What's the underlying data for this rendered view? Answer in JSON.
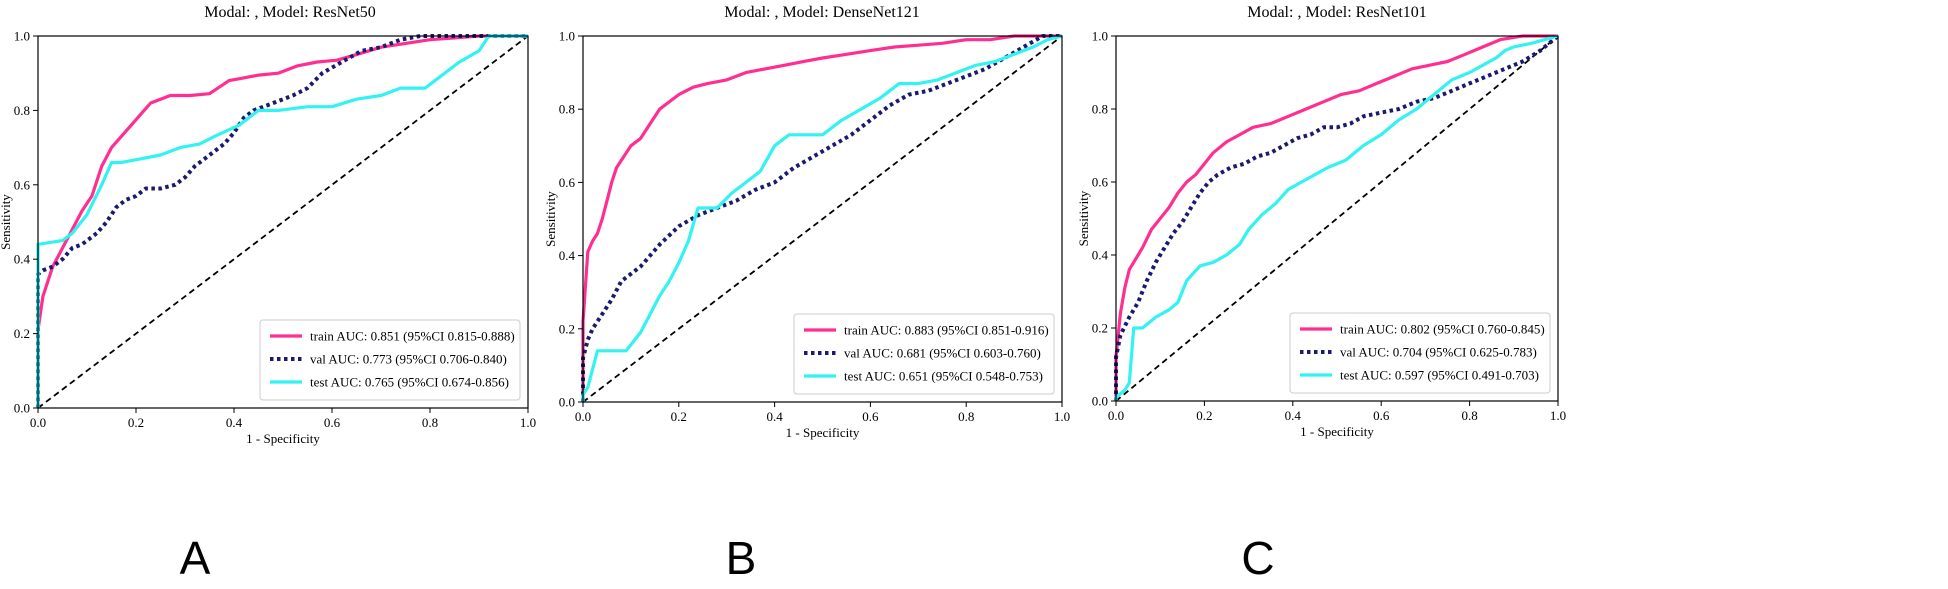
{
  "colors": {
    "train": "#ff2f92",
    "val": "#1a1a6e",
    "test": "#33f2f2",
    "diagonal": "#000000",
    "axes": "#000000"
  },
  "chart_data": [
    {
      "type": "line",
      "panel_label": "A",
      "title": "Modal: , Model: ResNet50",
      "xlabel": "1 - Specificity",
      "ylabel": "Sensitivity",
      "xlim": [
        0,
        1
      ],
      "ylim": [
        0,
        1
      ],
      "xticks": [
        "0.0",
        "0.2",
        "0.4",
        "0.6",
        "0.8",
        "1.0"
      ],
      "yticks": [
        "0.0",
        "0.2",
        "0.4",
        "0.6",
        "0.8",
        "1.0"
      ],
      "legend_position": "lower-right",
      "series": [
        {
          "key": "train",
          "name": "train AUC: 0.851 (95%CI 0.815-0.888)",
          "x": [
            0,
            0,
            0.01,
            0.02,
            0.03,
            0.05,
            0.07,
            0.09,
            0.11,
            0.13,
            0.15,
            0.17,
            0.19,
            0.21,
            0.23,
            0.25,
            0.27,
            0.31,
            0.35,
            0.39,
            0.41,
            0.45,
            0.49,
            0.53,
            0.57,
            0.61,
            0.65,
            0.7,
            0.75,
            0.8,
            0.85,
            0.9,
            0.95,
            1
          ],
          "y": [
            0,
            0.21,
            0.3,
            0.34,
            0.38,
            0.43,
            0.48,
            0.53,
            0.57,
            0.65,
            0.7,
            0.73,
            0.76,
            0.79,
            0.82,
            0.83,
            0.84,
            0.84,
            0.845,
            0.88,
            0.885,
            0.895,
            0.9,
            0.92,
            0.93,
            0.935,
            0.95,
            0.97,
            0.98,
            0.99,
            0.995,
            1,
            1,
            1
          ]
        },
        {
          "key": "val",
          "name": "val AUC: 0.773 (95%CI 0.706-0.840)",
          "x": [
            0,
            0,
            0.01,
            0.03,
            0.05,
            0.07,
            0.09,
            0.1,
            0.12,
            0.14,
            0.16,
            0.18,
            0.2,
            0.22,
            0.25,
            0.28,
            0.3,
            0.32,
            0.34,
            0.36,
            0.38,
            0.4,
            0.42,
            0.44,
            0.48,
            0.52,
            0.55,
            0.58,
            0.62,
            0.66,
            0.7,
            0.74,
            0.78,
            0.85,
            0.92,
            1
          ],
          "y": [
            0,
            0.36,
            0.37,
            0.38,
            0.4,
            0.43,
            0.44,
            0.45,
            0.47,
            0.5,
            0.54,
            0.56,
            0.57,
            0.59,
            0.59,
            0.6,
            0.62,
            0.65,
            0.67,
            0.69,
            0.71,
            0.74,
            0.78,
            0.8,
            0.82,
            0.84,
            0.86,
            0.9,
            0.93,
            0.96,
            0.97,
            0.99,
            1,
            1,
            1,
            1
          ]
        },
        {
          "key": "test",
          "name": "test AUC: 0.765 (95%CI 0.674-0.856)",
          "x": [
            0,
            0,
            0.05,
            0.07,
            0.1,
            0.13,
            0.15,
            0.17,
            0.21,
            0.25,
            0.29,
            0.33,
            0.36,
            0.41,
            0.45,
            0.49,
            0.55,
            0.6,
            0.65,
            0.7,
            0.74,
            0.79,
            0.83,
            0.86,
            0.9,
            0.92,
            0.95,
            1
          ],
          "y": [
            0,
            0.44,
            0.45,
            0.47,
            0.52,
            0.6,
            0.66,
            0.66,
            0.67,
            0.68,
            0.7,
            0.71,
            0.73,
            0.76,
            0.8,
            0.8,
            0.81,
            0.81,
            0.83,
            0.84,
            0.86,
            0.86,
            0.9,
            0.93,
            0.96,
            1,
            1,
            1
          ]
        }
      ]
    },
    {
      "type": "line",
      "panel_label": "B",
      "title": "Modal: , Model: DenseNet121",
      "xlabel": "1 - Specificity",
      "ylabel": "Sensitivity",
      "xlim": [
        0,
        1
      ],
      "ylim": [
        0,
        1
      ],
      "xticks": [
        "0.0",
        "0.2",
        "0.4",
        "0.6",
        "0.8",
        "1.0"
      ],
      "yticks": [
        "0.0",
        "0.2",
        "0.4",
        "0.6",
        "0.8",
        "1.0"
      ],
      "legend_position": "lower-right",
      "series": [
        {
          "key": "train",
          "name": "train AUC: 0.883 (95%CI 0.851-0.916)",
          "x": [
            0,
            0,
            0.01,
            0.02,
            0.03,
            0.04,
            0.05,
            0.06,
            0.07,
            0.08,
            0.1,
            0.12,
            0.14,
            0.16,
            0.18,
            0.2,
            0.23,
            0.26,
            0.3,
            0.34,
            0.38,
            0.42,
            0.46,
            0.5,
            0.55,
            0.6,
            0.65,
            0.7,
            0.75,
            0.8,
            0.85,
            0.9,
            0.95,
            1
          ],
          "y": [
            0,
            0.22,
            0.41,
            0.44,
            0.46,
            0.5,
            0.55,
            0.6,
            0.64,
            0.66,
            0.7,
            0.72,
            0.76,
            0.8,
            0.82,
            0.84,
            0.86,
            0.87,
            0.88,
            0.9,
            0.91,
            0.92,
            0.93,
            0.94,
            0.95,
            0.96,
            0.97,
            0.975,
            0.98,
            0.99,
            0.99,
            1,
            1,
            1
          ]
        },
        {
          "key": "val",
          "name": "val AUC: 0.681 (95%CI 0.603-0.760)",
          "x": [
            0,
            0,
            0.01,
            0.02,
            0.04,
            0.06,
            0.08,
            0.1,
            0.12,
            0.14,
            0.16,
            0.2,
            0.24,
            0.28,
            0.32,
            0.36,
            0.4,
            0.44,
            0.48,
            0.52,
            0.56,
            0.6,
            0.64,
            0.68,
            0.72,
            0.76,
            0.8,
            0.84,
            0.88,
            0.92,
            0.96,
            1
          ],
          "y": [
            0,
            0.12,
            0.17,
            0.2,
            0.24,
            0.28,
            0.33,
            0.35,
            0.37,
            0.4,
            0.43,
            0.48,
            0.51,
            0.53,
            0.55,
            0.58,
            0.6,
            0.64,
            0.67,
            0.7,
            0.73,
            0.77,
            0.81,
            0.84,
            0.85,
            0.87,
            0.89,
            0.91,
            0.94,
            0.97,
            1,
            1
          ]
        },
        {
          "key": "test",
          "name": "test AUC: 0.651 (95%CI 0.548-0.753)",
          "x": [
            0,
            0,
            0.01,
            0.02,
            0.03,
            0.06,
            0.09,
            0.12,
            0.14,
            0.16,
            0.18,
            0.2,
            0.22,
            0.24,
            0.26,
            0.28,
            0.31,
            0.34,
            0.37,
            0.4,
            0.43,
            0.46,
            0.5,
            0.54,
            0.58,
            0.62,
            0.66,
            0.7,
            0.74,
            0.78,
            0.82,
            0.86,
            0.9,
            0.94,
            0.97,
            1
          ],
          "y": [
            0,
            0.02,
            0.04,
            0.09,
            0.14,
            0.14,
            0.14,
            0.19,
            0.24,
            0.29,
            0.33,
            0.38,
            0.44,
            0.53,
            0.53,
            0.53,
            0.57,
            0.6,
            0.63,
            0.7,
            0.73,
            0.73,
            0.73,
            0.77,
            0.8,
            0.83,
            0.87,
            0.87,
            0.88,
            0.9,
            0.92,
            0.93,
            0.95,
            0.97,
            0.99,
            1
          ]
        }
      ]
    },
    {
      "type": "line",
      "panel_label": "C",
      "title": "Modal: , Model: ResNet101",
      "xlabel": "1 - Specificity",
      "ylabel": "Sensitivity",
      "xlim": [
        0,
        1
      ],
      "ylim": [
        0,
        1
      ],
      "xticks": [
        "0.0",
        "0.2",
        "0.4",
        "0.6",
        "0.8",
        "1.0"
      ],
      "yticks": [
        "0.0",
        "0.2",
        "0.4",
        "0.6",
        "0.8",
        "1.0"
      ],
      "legend_position": "lower-right",
      "series": [
        {
          "key": "train",
          "name": "train AUC: 0.802 (95%CI 0.760-0.845)",
          "x": [
            0,
            0,
            0.01,
            0.02,
            0.03,
            0.04,
            0.06,
            0.08,
            0.1,
            0.12,
            0.14,
            0.16,
            0.18,
            0.2,
            0.22,
            0.25,
            0.28,
            0.31,
            0.35,
            0.39,
            0.43,
            0.47,
            0.51,
            0.55,
            0.59,
            0.63,
            0.67,
            0.71,
            0.75,
            0.79,
            0.83,
            0.87,
            0.92,
            1
          ],
          "y": [
            0,
            0.12,
            0.24,
            0.31,
            0.36,
            0.38,
            0.42,
            0.47,
            0.5,
            0.53,
            0.57,
            0.6,
            0.62,
            0.65,
            0.68,
            0.71,
            0.73,
            0.75,
            0.76,
            0.78,
            0.8,
            0.82,
            0.84,
            0.85,
            0.87,
            0.89,
            0.91,
            0.92,
            0.93,
            0.95,
            0.97,
            0.99,
            1,
            1
          ]
        },
        {
          "key": "val",
          "name": "val AUC: 0.704 (95%CI 0.625-0.783)",
          "x": [
            0,
            0,
            0.01,
            0.03,
            0.05,
            0.07,
            0.09,
            0.11,
            0.13,
            0.15,
            0.17,
            0.19,
            0.21,
            0.23,
            0.26,
            0.29,
            0.32,
            0.35,
            0.38,
            0.41,
            0.44,
            0.47,
            0.5,
            0.53,
            0.56,
            0.6,
            0.64,
            0.68,
            0.72,
            0.76,
            0.8,
            0.84,
            0.88,
            0.92,
            0.96,
            1
          ],
          "y": [
            0,
            0.12,
            0.18,
            0.23,
            0.27,
            0.33,
            0.38,
            0.42,
            0.46,
            0.49,
            0.53,
            0.57,
            0.6,
            0.62,
            0.64,
            0.65,
            0.67,
            0.68,
            0.7,
            0.72,
            0.73,
            0.75,
            0.75,
            0.76,
            0.78,
            0.79,
            0.8,
            0.82,
            0.83,
            0.85,
            0.87,
            0.89,
            0.91,
            0.93,
            0.96,
            1
          ]
        },
        {
          "key": "test",
          "name": "test AUC: 0.597 (95%CI 0.491-0.703)",
          "x": [
            0,
            0,
            0.01,
            0.02,
            0.03,
            0.04,
            0.06,
            0.09,
            0.12,
            0.14,
            0.16,
            0.19,
            0.22,
            0.25,
            0.28,
            0.3,
            0.33,
            0.36,
            0.39,
            0.42,
            0.45,
            0.48,
            0.52,
            0.56,
            0.6,
            0.64,
            0.68,
            0.72,
            0.76,
            0.8,
            0.83,
            0.86,
            0.88,
            0.9,
            0.94,
            0.97,
            1
          ],
          "y": [
            0,
            0.01,
            0.02,
            0.03,
            0.05,
            0.2,
            0.2,
            0.23,
            0.25,
            0.27,
            0.33,
            0.37,
            0.38,
            0.4,
            0.43,
            0.47,
            0.51,
            0.54,
            0.58,
            0.6,
            0.62,
            0.64,
            0.66,
            0.7,
            0.73,
            0.77,
            0.8,
            0.84,
            0.88,
            0.9,
            0.92,
            0.94,
            0.96,
            0.97,
            0.98,
            0.99,
            1
          ]
        }
      ]
    }
  ]
}
